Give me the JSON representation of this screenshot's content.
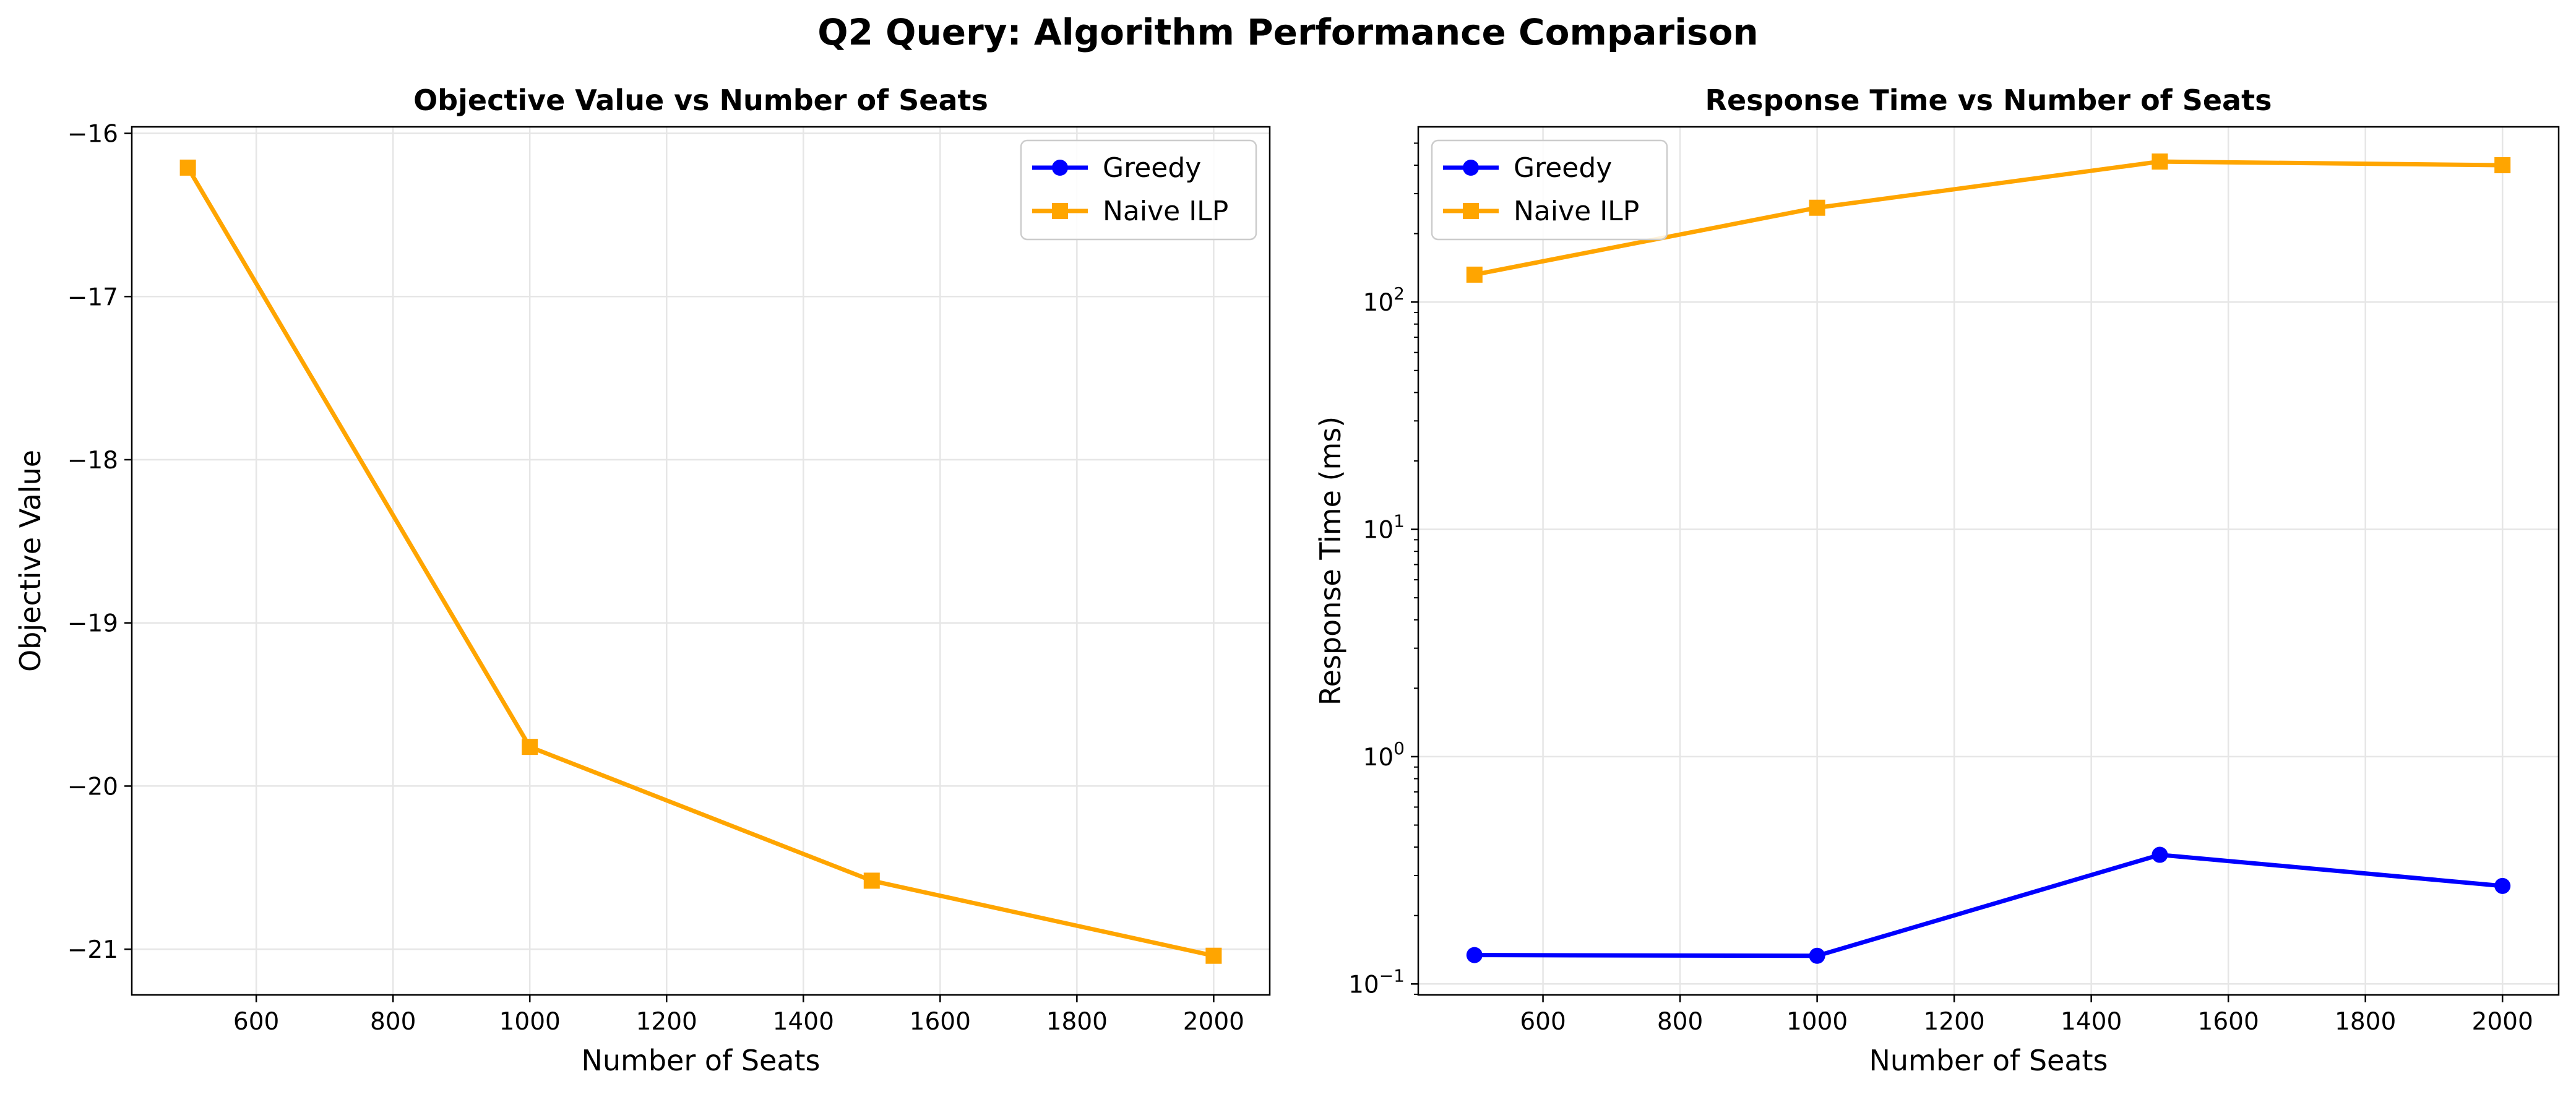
{
  "figure": {
    "title": "Q2 Query: Algorithm Performance Comparison"
  },
  "colors": {
    "greedy": "#0000ff",
    "naive_ilp": "#ffa500",
    "grid": "#e6e6e6"
  },
  "chart_data": [
    {
      "type": "line",
      "title": "Objective Value vs Number of Seats",
      "xlabel": "Number of Seats",
      "ylabel": "Objective Value",
      "xlim": [
        418,
        2082
      ],
      "ylim": [
        -21.28,
        -15.96
      ],
      "xticks": [
        600,
        800,
        1000,
        1200,
        1400,
        1600,
        1800,
        2000
      ],
      "yticks": [
        -16,
        -17,
        -18,
        -19,
        -20,
        -21
      ],
      "ytick_labels": [
        "−16",
        "−17",
        "−18",
        "−19",
        "−20",
        "−21"
      ],
      "grid": true,
      "legend": "top-right",
      "series": [
        {
          "name": "Greedy",
          "color": "#0000ff",
          "marker": "circle",
          "x": [],
          "y": []
        },
        {
          "name": "Naive ILP",
          "color": "#ffa500",
          "marker": "square",
          "x": [
            500,
            1000,
            1500,
            2000
          ],
          "y": [
            -16.21,
            -19.76,
            -20.58,
            -21.04
          ]
        }
      ]
    },
    {
      "type": "line",
      "title": "Response Time vs Number of Seats",
      "xlabel": "Number of Seats",
      "ylabel": "Response Time (ms)",
      "xlim": [
        418,
        2082
      ],
      "ylim": [
        0.0895,
        590
      ],
      "yscale": "log",
      "xticks": [
        600,
        800,
        1000,
        1200,
        1400,
        1600,
        1800,
        2000
      ],
      "yticks": [
        0.1,
        1,
        10,
        100
      ],
      "ytick_labels": [
        [
          "10",
          "−1"
        ],
        [
          "10",
          "0"
        ],
        [
          "10",
          "1"
        ],
        [
          "10",
          "2"
        ]
      ],
      "grid": true,
      "legend": "top-left",
      "series": [
        {
          "name": "Greedy",
          "color": "#0000ff",
          "marker": "circle",
          "x": [
            500,
            1000,
            1500,
            2000
          ],
          "y": [
            0.134,
            0.133,
            0.37,
            0.27
          ]
        },
        {
          "name": "Naive ILP",
          "color": "#ffa500",
          "marker": "square",
          "x": [
            500,
            1000,
            1500,
            2000
          ],
          "y": [
            132,
            260,
            415,
            400
          ]
        }
      ]
    }
  ]
}
